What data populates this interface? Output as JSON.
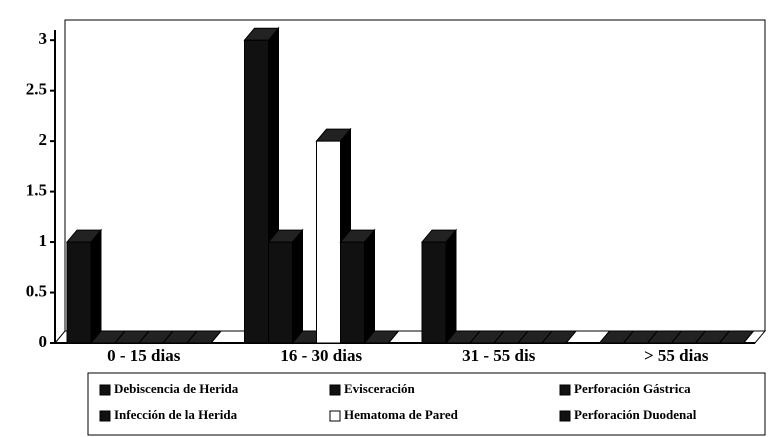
{
  "chart_data": {
    "type": "bar",
    "categories": [
      "0 - 15 dias",
      "16 - 30 dias",
      "31 - 55 dis",
      "> 55 dias"
    ],
    "series": [
      {
        "name": "Debiscencia de Herida",
        "color": "#111111",
        "values": [
          1,
          3,
          1,
          0
        ]
      },
      {
        "name": "Infección de la Herida",
        "color": "#111111",
        "values": [
          0,
          1,
          0,
          0
        ]
      },
      {
        "name": "Evisceración",
        "color": "#111111",
        "values": [
          0,
          0,
          0,
          0
        ]
      },
      {
        "name": "Hematoma de Pared",
        "color": "#ffffff",
        "values": [
          0,
          2,
          0,
          0
        ]
      },
      {
        "name": "Perforación Gástrica",
        "color": "#111111",
        "values": [
          0,
          1,
          0,
          0
        ]
      },
      {
        "name": "Perforación Duodenal",
        "color": "#111111",
        "values": [
          0,
          0,
          0,
          0
        ]
      }
    ],
    "ylim": [
      0,
      3.2
    ],
    "yticks": [
      0,
      0.5,
      1,
      1.5,
      2,
      2.5,
      3
    ],
    "legend": "bottom"
  }
}
